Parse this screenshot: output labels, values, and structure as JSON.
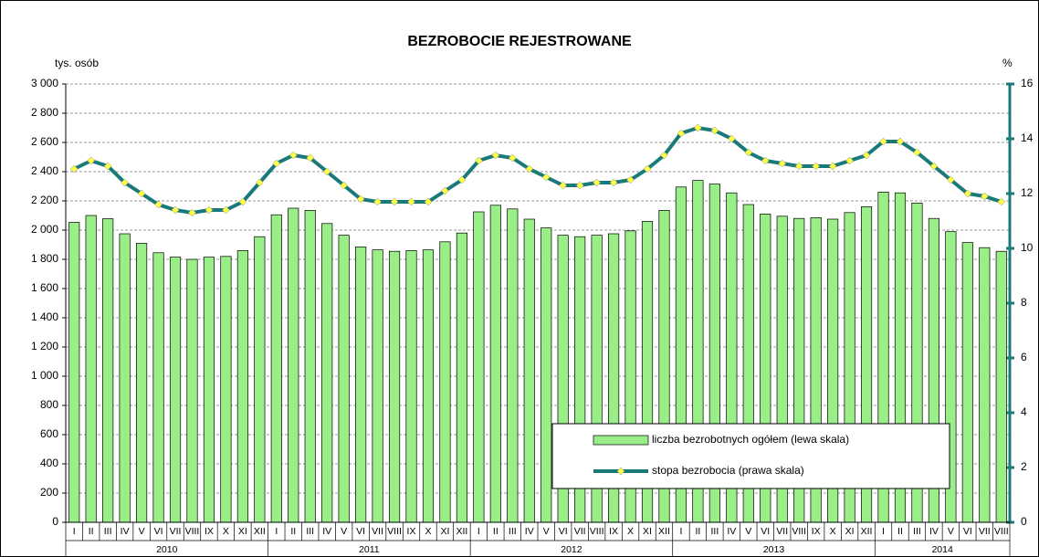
{
  "chart_data": {
    "type": "bar-line",
    "title": "BEZROBOCIE REJESTROWANE",
    "ylabel": "tys. osób",
    "y2label": "%",
    "categories": [
      "I",
      "II",
      "III",
      "IV",
      "V",
      "VI",
      "VII",
      "VIII",
      "IX",
      "X",
      "XI",
      "XII",
      "I",
      "II",
      "III",
      "IV",
      "V",
      "VI",
      "VII",
      "VIII",
      "IX",
      "X",
      "XI",
      "XII",
      "I",
      "II",
      "III",
      "IV",
      "V",
      "VI",
      "VII",
      "VIII",
      "IX",
      "X",
      "XI",
      "XII",
      "I",
      "II",
      "III",
      "IV",
      "V",
      "VI",
      "VII",
      "VIII",
      "IX",
      "X",
      "XI",
      "XII",
      "I",
      "II",
      "III",
      "IV",
      "V",
      "VI",
      "VII",
      "VIII"
    ],
    "years": [
      "2010",
      "2011",
      "2012",
      "2013",
      "2014"
    ],
    "series": [
      {
        "name": "liczba bezrobotnych ogółem (lewa skala)",
        "color": "#99ee88",
        "values": [
          2053,
          2100,
          2078,
          1975,
          1910,
          1845,
          1815,
          1800,
          1815,
          1820,
          1860,
          1955,
          2105,
          2150,
          2135,
          2045,
          1965,
          1885,
          1865,
          1855,
          1860,
          1865,
          1920,
          1980,
          2125,
          2170,
          2145,
          2075,
          2015,
          1965,
          1955,
          1965,
          1975,
          1995,
          2060,
          2135,
          2295,
          2340,
          2315,
          2255,
          2175,
          2110,
          2095,
          2080,
          2085,
          2075,
          2120,
          2160,
          2260,
          2255,
          2185,
          2080,
          1990,
          1915,
          1880,
          1855
        ]
      },
      {
        "name": "stopa bezrobocia (prawa skala)",
        "color": "#1a7a7a",
        "axis": "y2",
        "values": [
          12.9,
          13.2,
          13.0,
          12.4,
          12.0,
          11.6,
          11.4,
          11.3,
          11.4,
          11.4,
          11.7,
          12.4,
          13.1,
          13.4,
          13.3,
          12.8,
          12.3,
          11.8,
          11.7,
          11.7,
          11.7,
          11.7,
          12.1,
          12.5,
          13.2,
          13.4,
          13.3,
          12.9,
          12.6,
          12.3,
          12.3,
          12.4,
          12.4,
          12.5,
          12.9,
          13.4,
          14.2,
          14.4,
          14.3,
          14.0,
          13.5,
          13.2,
          13.1,
          13.0,
          13.0,
          13.0,
          13.2,
          13.4,
          13.9,
          13.9,
          13.5,
          13.0,
          12.5,
          12.0,
          11.9,
          11.7
        ]
      }
    ],
    "ylim": [
      0,
      3000
    ],
    "yticks": [
      0,
      200,
      400,
      600,
      800,
      {
        "value": 1000,
        "label": "1 000"
      },
      {
        "value": 1200,
        "label": "1 200"
      },
      {
        "value": 1400,
        "label": "1 400"
      },
      {
        "value": 1600,
        "label": "1 600"
      },
      {
        "value": 1800,
        "label": "1 800"
      },
      {
        "value": 2000,
        "label": "2 000"
      },
      {
        "value": 2200,
        "label": "2 200"
      },
      {
        "value": 2400,
        "label": "2 400"
      },
      {
        "value": 2600,
        "label": "2 600"
      },
      {
        "value": 2800,
        "label": "2 800"
      },
      {
        "value": 3000,
        "label": "3 000"
      }
    ],
    "y2lim": [
      0,
      16
    ],
    "y2ticks": [
      0,
      2,
      4,
      6,
      8,
      10,
      12,
      14,
      16
    ],
    "grid": true
  }
}
